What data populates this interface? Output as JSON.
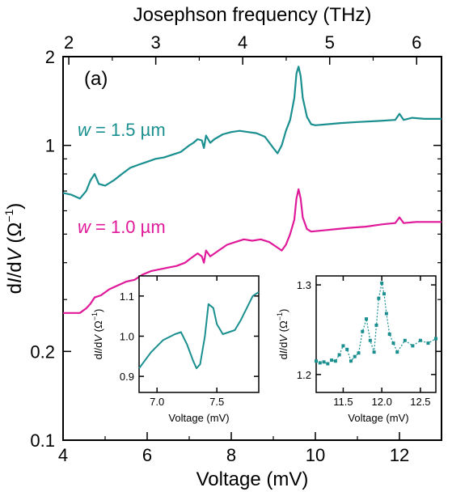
{
  "colors": {
    "teal": "#1a8f8f",
    "magenta": "#e0189a",
    "axis": "#000000"
  },
  "chart_data": [
    {
      "type": "line",
      "panel_label": "(a)",
      "xlabel": "Voltage (mV)",
      "ylabel": "dI/dV (Ω⁻¹)",
      "top_xlabel": "Josephson frequency (THz)",
      "xlim": [
        4,
        13
      ],
      "ylim": [
        0.1,
        2
      ],
      "yscale": "log",
      "xticks": [
        4,
        6,
        8,
        10,
        12
      ],
      "yticks": [
        0.1,
        0.2,
        1,
        2
      ],
      "ytick_labels": [
        "0.1",
        "0.2",
        "1",
        "2"
      ],
      "top_xlim": [
        1.934,
        6.286
      ],
      "top_xticks": [
        2,
        3,
        4,
        5,
        6
      ],
      "series": [
        {
          "name": "w = 1.5 µm",
          "label_prefix": "w",
          "label_suffix": " = 1.5 µm",
          "color": "#1a8f8f",
          "x": [
            4.0,
            4.2,
            4.4,
            4.55,
            4.65,
            4.75,
            4.85,
            5.0,
            5.2,
            5.4,
            5.6,
            5.8,
            6.0,
            6.2,
            6.4,
            6.6,
            6.8,
            7.0,
            7.1,
            7.2,
            7.3,
            7.35,
            7.4,
            7.5,
            7.6,
            7.8,
            8.0,
            8.2,
            8.4,
            8.6,
            8.8,
            9.0,
            9.1,
            9.2,
            9.3,
            9.4,
            9.5,
            9.55,
            9.6,
            9.65,
            9.7,
            9.8,
            9.9,
            10.0,
            10.3,
            10.6,
            11.0,
            11.5,
            11.9,
            12.0,
            12.1,
            12.3,
            12.6,
            13.0
          ],
          "y": [
            0.69,
            0.68,
            0.66,
            0.7,
            0.76,
            0.8,
            0.74,
            0.73,
            0.76,
            0.8,
            0.84,
            0.86,
            0.88,
            0.9,
            0.91,
            0.93,
            0.95,
            1.0,
            1.02,
            1.05,
            1.04,
            0.98,
            1.08,
            1.02,
            1.05,
            1.09,
            1.11,
            1.12,
            1.11,
            1.1,
            1.07,
            0.98,
            0.94,
            1.0,
            1.12,
            1.22,
            1.45,
            1.75,
            1.85,
            1.72,
            1.45,
            1.25,
            1.18,
            1.17,
            1.18,
            1.19,
            1.2,
            1.21,
            1.22,
            1.28,
            1.22,
            1.24,
            1.23,
            1.23
          ]
        },
        {
          "name": "w = 1.0 µm",
          "label_prefix": "w",
          "label_suffix": " = 1.0 µm",
          "color": "#e0189a",
          "x": [
            4.0,
            4.2,
            4.4,
            4.55,
            4.65,
            4.75,
            4.9,
            5.1,
            5.3,
            5.5,
            5.7,
            5.9,
            6.1,
            6.3,
            6.5,
            6.7,
            6.9,
            7.0,
            7.1,
            7.2,
            7.3,
            7.35,
            7.4,
            7.5,
            7.7,
            7.9,
            8.1,
            8.3,
            8.5,
            8.7,
            8.9,
            9.1,
            9.2,
            9.3,
            9.4,
            9.5,
            9.55,
            9.6,
            9.65,
            9.7,
            9.8,
            9.9,
            10.2,
            10.5,
            10.8,
            11.2,
            11.6,
            11.9,
            12.0,
            12.1,
            12.4,
            12.7,
            13.0
          ],
          "y": [
            0.27,
            0.27,
            0.27,
            0.28,
            0.29,
            0.305,
            0.31,
            0.325,
            0.335,
            0.345,
            0.35,
            0.365,
            0.375,
            0.38,
            0.385,
            0.39,
            0.4,
            0.41,
            0.42,
            0.43,
            0.42,
            0.4,
            0.44,
            0.42,
            0.44,
            0.46,
            0.47,
            0.48,
            0.475,
            0.48,
            0.47,
            0.45,
            0.44,
            0.46,
            0.5,
            0.56,
            0.66,
            0.71,
            0.66,
            0.57,
            0.52,
            0.51,
            0.515,
            0.52,
            0.525,
            0.53,
            0.54,
            0.545,
            0.57,
            0.545,
            0.55,
            0.55,
            0.55
          ]
        }
      ]
    },
    {
      "type": "line",
      "xlabel": "Voltage (mV)",
      "ylabel": "dI/dV (Ω⁻¹)",
      "xlim": [
        6.85,
        7.85
      ],
      "ylim": [
        0.86,
        1.15
      ],
      "xticks": [
        7.0,
        7.5
      ],
      "xtick_labels": [
        "7.0",
        "7.5"
      ],
      "yticks": [
        0.9,
        1.0,
        1.1
      ],
      "ytick_labels": [
        "0.9",
        "1.0",
        "1.1"
      ],
      "series": [
        {
          "color": "#1a8f8f",
          "x": [
            6.85,
            6.95,
            7.05,
            7.15,
            7.2,
            7.25,
            7.3,
            7.33,
            7.36,
            7.4,
            7.43,
            7.47,
            7.5,
            7.55,
            7.6,
            7.65,
            7.7,
            7.75,
            7.8,
            7.85
          ],
          "y": [
            0.92,
            0.96,
            0.99,
            1.005,
            1.01,
            0.98,
            0.94,
            0.92,
            0.93,
            1.0,
            1.08,
            1.07,
            1.03,
            1.005,
            1.01,
            1.015,
            1.04,
            1.07,
            1.1,
            1.11
          ]
        }
      ]
    },
    {
      "type": "scatter",
      "xlabel": "Voltage (mV)",
      "ylabel": "dI/dV (Ω⁻¹)",
      "xlim": [
        11.15,
        12.7
      ],
      "ylim": [
        1.18,
        1.31
      ],
      "xticks": [
        11.5,
        12.0,
        12.5
      ],
      "xtick_labels": [
        "11.5",
        "12.0",
        "12.5"
      ],
      "yticks": [
        1.2,
        1.3
      ],
      "ytick_labels": [
        "1.2",
        "1.3"
      ],
      "series": [
        {
          "color": "#1a8f8f",
          "x": [
            11.15,
            11.2,
            11.25,
            11.3,
            11.35,
            11.4,
            11.45,
            11.5,
            11.55,
            11.6,
            11.65,
            11.7,
            11.75,
            11.8,
            11.85,
            11.9,
            11.93,
            11.96,
            12.0,
            12.03,
            12.06,
            12.1,
            12.15,
            12.2,
            12.3,
            12.4,
            12.5,
            12.6,
            12.7
          ],
          "y": [
            1.215,
            1.213,
            1.214,
            1.212,
            1.216,
            1.215,
            1.222,
            1.232,
            1.228,
            1.215,
            1.22,
            1.224,
            1.248,
            1.262,
            1.238,
            1.225,
            1.255,
            1.285,
            1.302,
            1.29,
            1.268,
            1.245,
            1.235,
            1.225,
            1.238,
            1.232,
            1.238,
            1.235,
            1.24
          ]
        }
      ]
    }
  ]
}
